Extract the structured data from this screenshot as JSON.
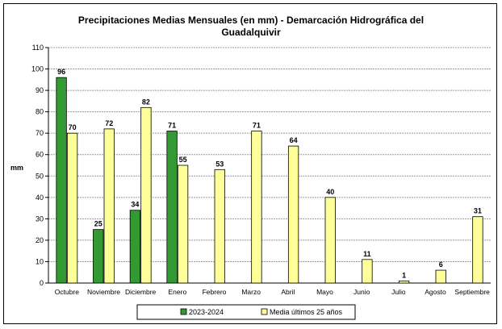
{
  "chart_data": {
    "type": "bar",
    "title_line1": "Precipitaciones Medias Mensuales (en mm) - Demarcación Hidrográfica del",
    "title_line2": "Guadalquivir",
    "ylabel": "mm",
    "ylim": [
      0,
      110
    ],
    "yticks": [
      0,
      10,
      20,
      30,
      40,
      50,
      60,
      70,
      80,
      90,
      100,
      110
    ],
    "grid": true,
    "legend_position": "bottom",
    "categories": [
      "Octubre",
      "Noviembre",
      "Diciembre",
      "Enero",
      "Febrero",
      "Marzo",
      "Abril",
      "Mayo",
      "Junio",
      "Julio",
      "Agosto",
      "Septiembre"
    ],
    "series": [
      {
        "name": "2023-2024",
        "color": "#339933",
        "values": [
          96,
          25,
          34,
          71,
          null,
          null,
          null,
          null,
          null,
          null,
          null,
          null
        ]
      },
      {
        "name": "Media últimos 25 años",
        "color": "#ffff99",
        "values": [
          70,
          72,
          82,
          55,
          53,
          71,
          64,
          40,
          11,
          1,
          6,
          31
        ]
      }
    ]
  }
}
